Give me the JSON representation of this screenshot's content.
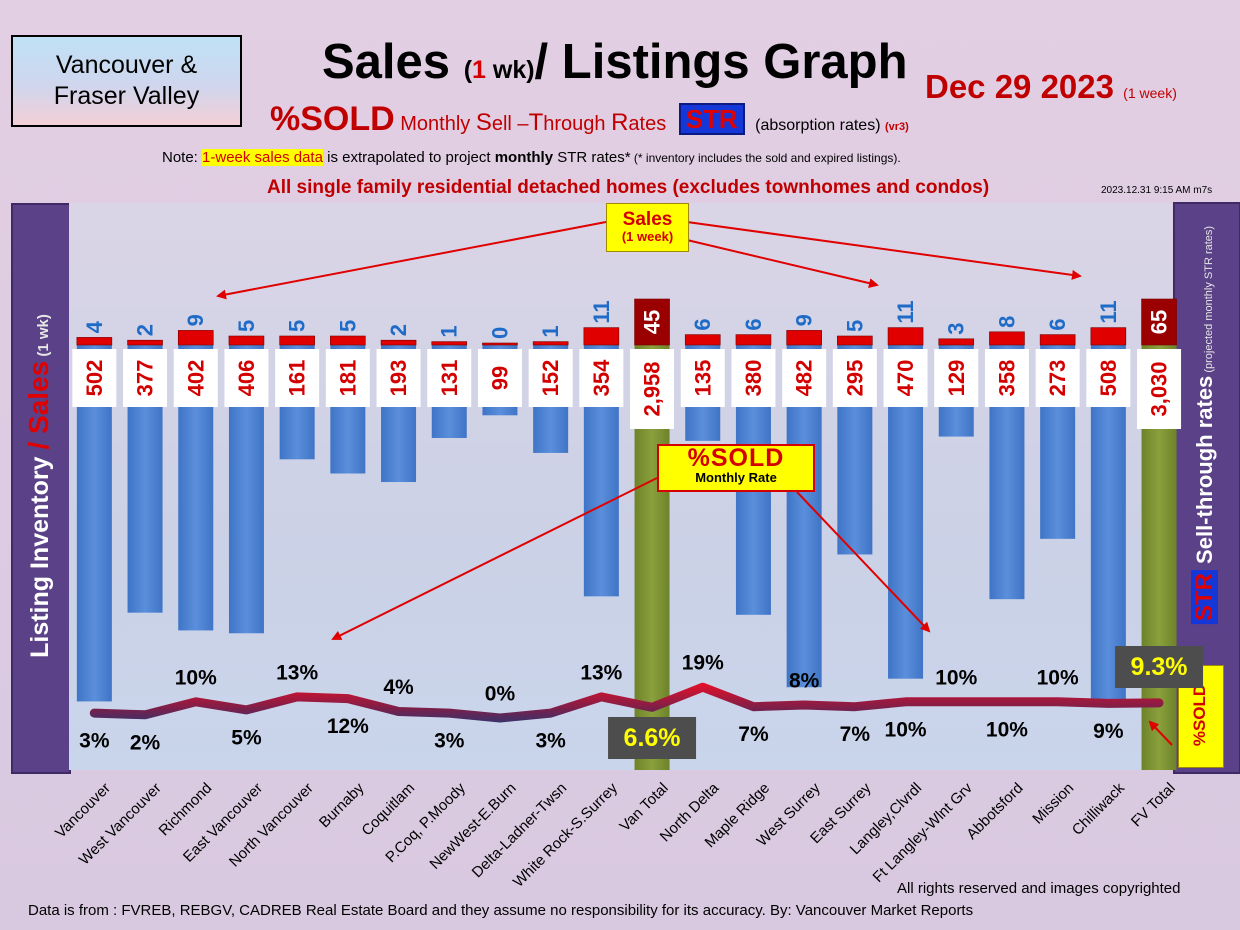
{
  "header": {
    "region_line1": "Vancouver &",
    "region_line2": "Fraser Valley",
    "title_sales": "Sales",
    "title_paren_open": "(",
    "title_one": "1",
    "title_wk": " wk)",
    "title_rest": "/ Listings Graph",
    "date": "Dec 29  2023",
    "date_sub": "(1 week)",
    "pct_sold": "%SOLD",
    "monthly_parts": [
      " Monthly ",
      "S",
      "ell –",
      "T",
      "hrough ",
      "R",
      "ates"
    ],
    "str_badge": "STR",
    "absorption": "(absorption rates)",
    "version": "(vr3)",
    "note_prefix": "Note: ",
    "note_highlight": "1-week sales data",
    "note_mid": " is extrapolated to project ",
    "note_bold": "monthly",
    "note_after": " STR rates*",
    "note_small": " (* inventory includes the sold and expired listings).",
    "detached_note": "All single family residential detached homes (excludes townhomes and condos)",
    "timestamp": "2023.12.31 9:15 AM m7s"
  },
  "left_axis": {
    "text1": "Listing Inventory ",
    "slash": "/",
    "sales": " Sales",
    "sub": " (1 wk)"
  },
  "right_axis": {
    "str": "STR",
    "text": " Sell-through rates",
    "sub": " (projected monthly STR rates)"
  },
  "callouts": {
    "sales_line1": "Sales",
    "sales_line2": "(1 week)",
    "sold_line1": "%SOLD",
    "sold_line2": "Monthly Rate",
    "pct_badge": "%SOLD"
  },
  "footer": {
    "rights": "All rights reserved and  images copyrighted",
    "source": "Data is from : FVREB, REBGV, CADREB Real Estate Board and they assume no responsibility for its accuracy. By: Vancouver Market Reports"
  },
  "colors": {
    "inventory_bar": "#4f83d4",
    "total_bar": "#7f9432",
    "sales_bar": "#e00000",
    "total_sales_bar": "#9a0000",
    "line_low": "#223a78",
    "line_high": "#e0102a"
  },
  "chart_data": {
    "type": "bar",
    "categories": [
      "Vancouver",
      "West Vancouver",
      "Richmond",
      "East Vancouver",
      "North Vancouver",
      "Burnaby",
      "Coquitlam",
      "P.Coq, P.Moody",
      "NewWest-E.Burn",
      "Delta-Ladner-Twsn",
      "White Rock-S.Surrey",
      "Van Total",
      "North Delta",
      "Maple Ridge",
      "West Surrey",
      "East Surrey",
      "Langley,Clvrdl",
      "Ft Langley-Wlnt Grv",
      "Abbotsford",
      "Mission",
      "Chilliwack",
      "FV Total"
    ],
    "is_total": [
      false,
      false,
      false,
      false,
      false,
      false,
      false,
      false,
      false,
      false,
      false,
      true,
      false,
      false,
      false,
      false,
      false,
      false,
      false,
      false,
      false,
      true
    ],
    "series": [
      {
        "name": "Listing Inventory",
        "values": [
          502,
          377,
          402,
          406,
          161,
          181,
          193,
          131,
          99,
          152,
          354,
          2958,
          135,
          380,
          482,
          295,
          470,
          129,
          358,
          273,
          508,
          3030
        ],
        "labels": [
          "502",
          "377",
          "402",
          "406",
          "161",
          "181",
          "193",
          "131",
          "99",
          "152",
          "354",
          "2,958",
          "135",
          "380",
          "482",
          "295",
          "470",
          "129",
          "358",
          "273",
          "508",
          "3,030"
        ]
      },
      {
        "name": "Sales",
        "values": [
          4,
          2,
          9,
          5,
          5,
          5,
          2,
          1,
          0,
          1,
          11,
          45,
          6,
          6,
          9,
          5,
          11,
          3,
          8,
          6,
          11,
          65
        ]
      },
      {
        "name": "%SOLD",
        "values": [
          3,
          2,
          10,
          5,
          13,
          12,
          4,
          3,
          0,
          3,
          13,
          6.6,
          19,
          7,
          8,
          7,
          10,
          10,
          10,
          10,
          9,
          9.3
        ],
        "labels": [
          "3%",
          "2%",
          "10%",
          "5%",
          "13%",
          "12%",
          "4%",
          "3%",
          "0%",
          "3%",
          "13%",
          "6.6%",
          "19%",
          "7%",
          "8%",
          "7%",
          "10%",
          "10%",
          "10%",
          "10%",
          "9%",
          "9.3%"
        ]
      }
    ]
  }
}
